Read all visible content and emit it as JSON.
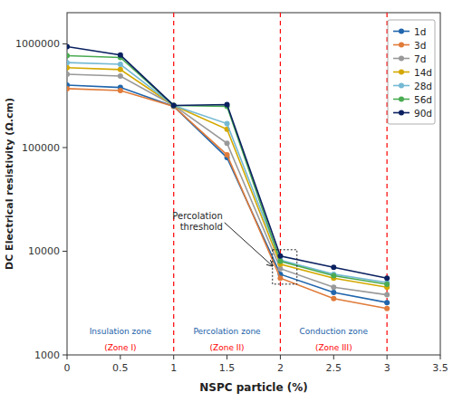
{
  "chart_data": {
    "type": "line",
    "x": [
      0,
      0.5,
      1.0,
      1.5,
      2.0,
      2.5,
      3.0
    ],
    "series": [
      {
        "name": "1d",
        "color": "#2166ac",
        "values": [
          400000,
          380000,
          250000,
          80000,
          6000,
          4000,
          3200
        ]
      },
      {
        "name": "3d",
        "color": "#e07b39",
        "values": [
          370000,
          355000,
          250000,
          85000,
          5500,
          3500,
          2800
        ]
      },
      {
        "name": "7d",
        "color": "#999999",
        "values": [
          510000,
          490000,
          255000,
          110000,
          6800,
          4500,
          3800
        ]
      },
      {
        "name": "14d",
        "color": "#d4a800",
        "values": [
          590000,
          565000,
          255000,
          150000,
          7500,
          5500,
          4500
        ]
      },
      {
        "name": "28d",
        "color": "#74b9d4",
        "values": [
          660000,
          635000,
          255000,
          170000,
          8200,
          6000,
          5000
        ]
      },
      {
        "name": "56d",
        "color": "#4aab52",
        "values": [
          770000,
          740000,
          255000,
          250000,
          8000,
          5800,
          4800
        ]
      },
      {
        "name": "90d",
        "color": "#0a2060",
        "values": [
          940000,
          780000,
          255000,
          260000,
          9000,
          7000,
          5500
        ]
      }
    ],
    "x_label": "NSPC particle (%)",
    "y_label": "DC Electrical resistivity (Ω.cm)",
    "xlim": [
      0,
      3.5
    ],
    "ylim": [
      1000,
      2000000
    ],
    "xticks": [
      0,
      0.5,
      1,
      1.5,
      2,
      2.5,
      3,
      3.5
    ],
    "yticks": [
      1000,
      10000,
      100000,
      1000000
    ],
    "log": "y",
    "grid": false,
    "legend": "upper right",
    "marker": "circle",
    "vlines": [
      1.0,
      2.0,
      3.0
    ],
    "annotations": [
      {
        "text": "Insulation zone",
        "x": 0.5,
        "y": 1800,
        "color": "#2060a8"
      },
      {
        "text": "(Zone I)",
        "x": 0.5,
        "y": 1250,
        "color": "red"
      },
      {
        "text": "Percolation zone",
        "x": 1.5,
        "y": 1800,
        "color": "#2060a8"
      },
      {
        "text": "(Zone II)",
        "x": 1.5,
        "y": 1250,
        "color": "red"
      },
      {
        "text": "Conduction zone",
        "x": 2.5,
        "y": 1800,
        "color": "#2060a8"
      },
      {
        "text": "(Zone III)",
        "x": 2.5,
        "y": 1250,
        "color": "red"
      },
      {
        "text": "Percolation\nthreshold",
        "x": 1.935,
        "y": 7200
      }
    ]
  }
}
